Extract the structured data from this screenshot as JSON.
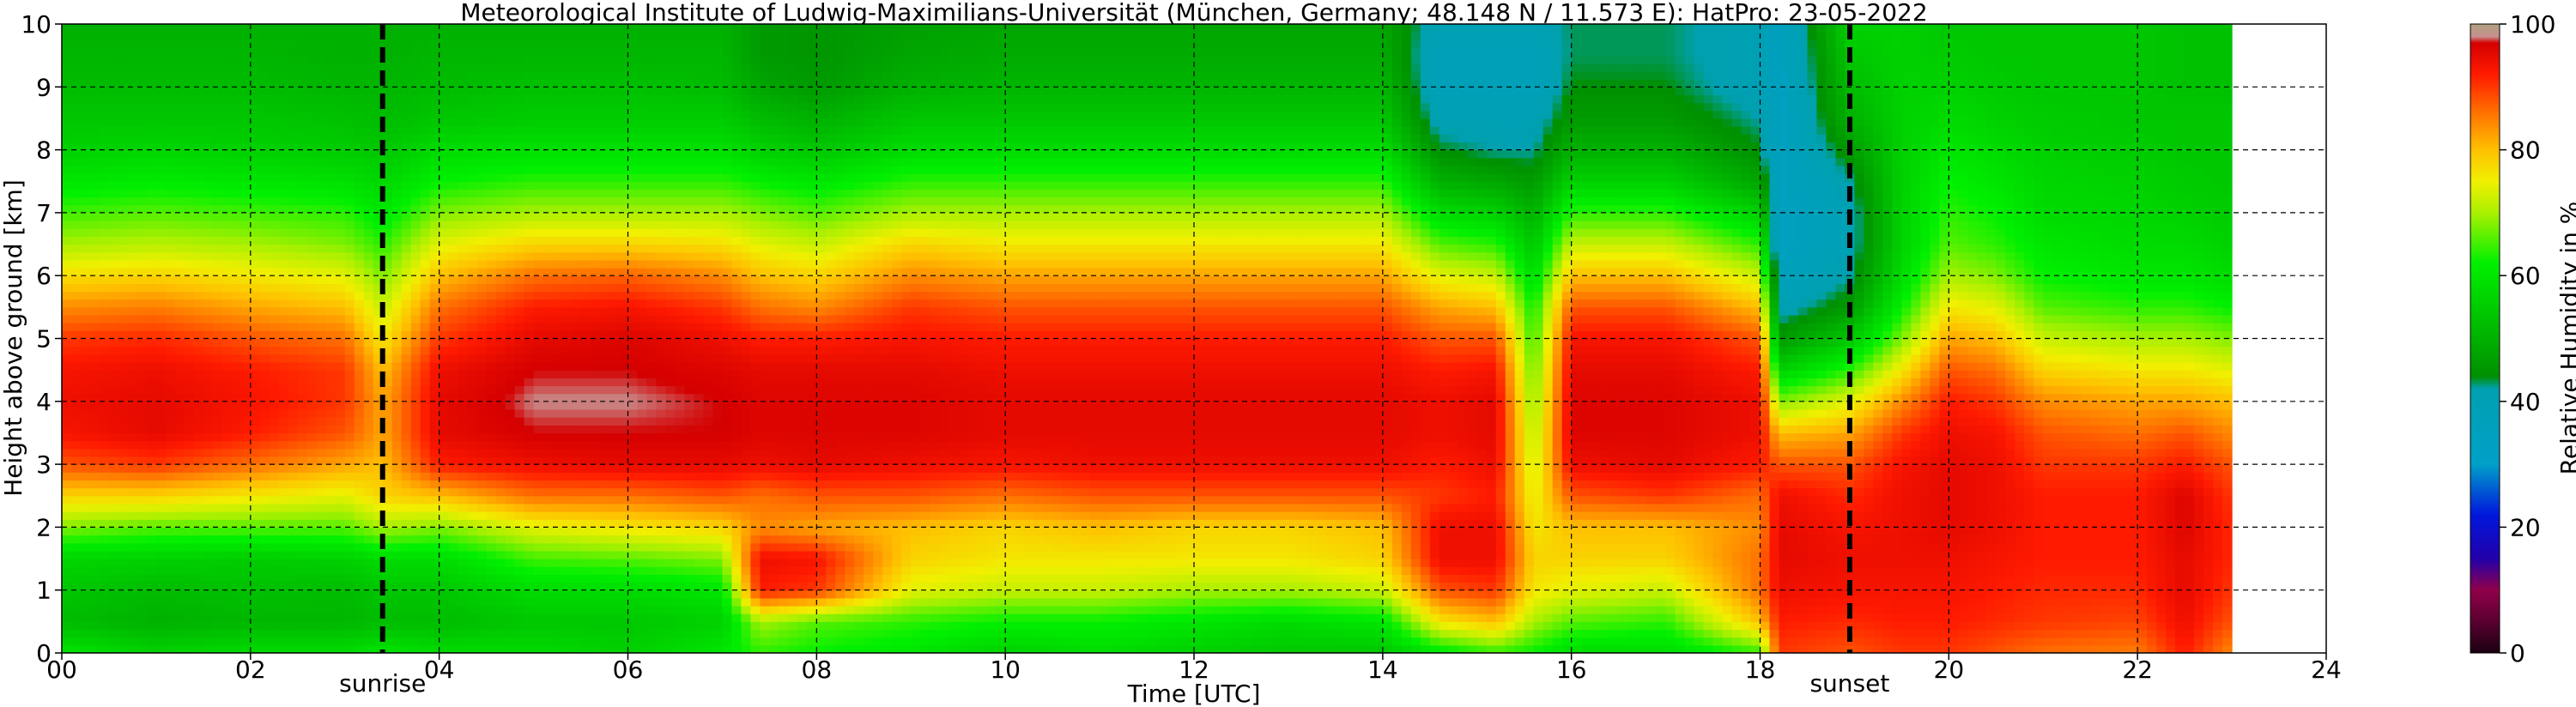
{
  "chart_data": {
    "type": "heatmap",
    "title": "Meteorological Institute of Ludwig-Maximilians-Universität (München, Germany; 48.148 N / 11.573 E):    HatPro: 23-05-2022",
    "xlabel": "Time [UTC]",
    "ylabel": "Height above ground [km]",
    "xlim": [
      0,
      24
    ],
    "ylim": [
      0,
      10
    ],
    "data_end_hour": 23,
    "x_ticks": [
      "00",
      "02",
      "04",
      "06",
      "08",
      "10",
      "12",
      "14",
      "16",
      "18",
      "20",
      "22",
      "24"
    ],
    "y_ticks": [
      "0",
      "1",
      "2",
      "3",
      "4",
      "5",
      "6",
      "7",
      "8",
      "9",
      "10"
    ],
    "grid": true,
    "vlines": [
      {
        "label": "sunrise",
        "hour": 3.4
      },
      {
        "label": "sunset",
        "hour": 18.95
      }
    ],
    "colorbar": {
      "label": "Relative Humidity in %",
      "range": [
        0,
        100
      ],
      "ticks": [
        "0",
        "20",
        "40",
        "60",
        "80",
        "100"
      ],
      "stops": [
        {
          "v": 0,
          "c": "#1a0010"
        },
        {
          "v": 5,
          "c": "#5a0030"
        },
        {
          "v": 10,
          "c": "#90004a"
        },
        {
          "v": 15,
          "c": "#2200aa"
        },
        {
          "v": 22,
          "c": "#0018dd"
        },
        {
          "v": 30,
          "c": "#00a0c8"
        },
        {
          "v": 42,
          "c": "#00a0b0"
        },
        {
          "v": 44,
          "c": "#009000"
        },
        {
          "v": 55,
          "c": "#00cc00"
        },
        {
          "v": 62,
          "c": "#00f000"
        },
        {
          "v": 70,
          "c": "#aaf000"
        },
        {
          "v": 75,
          "c": "#f0f000"
        },
        {
          "v": 80,
          "c": "#ffc000"
        },
        {
          "v": 86,
          "c": "#ff7000"
        },
        {
          "v": 92,
          "c": "#ff1a00"
        },
        {
          "v": 97,
          "c": "#d40000"
        },
        {
          "v": 98,
          "c": "#c89090"
        },
        {
          "v": 100,
          "c": "#b0a080"
        }
      ]
    },
    "rh_profiles": {
      "heights_km": [
        0,
        0.5,
        1,
        1.5,
        2,
        2.5,
        3,
        3.5,
        4,
        4.5,
        5,
        5.5,
        6,
        6.5,
        7,
        7.5,
        8,
        8.5,
        9,
        9.5,
        10
      ],
      "columns": [
        {
          "hour": 0.0,
          "rh": [
            60,
            52,
            54,
            57,
            68,
            78,
            88,
            93,
            94,
            93,
            90,
            84,
            77,
            70,
            65,
            60,
            56,
            54,
            52,
            51,
            50
          ]
        },
        {
          "hour": 1.0,
          "rh": [
            56,
            50,
            52,
            56,
            66,
            78,
            90,
            95,
            95,
            94,
            91,
            85,
            78,
            71,
            66,
            61,
            57,
            54,
            52,
            51,
            50
          ]
        },
        {
          "hour": 2.0,
          "rh": [
            58,
            51,
            53,
            55,
            66,
            76,
            86,
            92,
            93,
            92,
            88,
            82,
            76,
            70,
            65,
            60,
            56,
            54,
            52,
            51,
            50
          ]
        },
        {
          "hour": 3.0,
          "rh": [
            58,
            51,
            52,
            56,
            66,
            74,
            82,
            88,
            90,
            90,
            86,
            80,
            74,
            68,
            64,
            59,
            55,
            53,
            51,
            50,
            50
          ]
        },
        {
          "hour": 3.4,
          "rh": [
            60,
            52,
            54,
            58,
            70,
            78,
            80,
            82,
            82,
            80,
            76,
            72,
            68,
            64,
            60,
            57,
            54,
            52,
            51,
            50,
            50
          ]
        },
        {
          "hour": 4.0,
          "rh": [
            58,
            52,
            54,
            58,
            68,
            80,
            92,
            95,
            95,
            94,
            90,
            86,
            80,
            74,
            68,
            62,
            58,
            54,
            52,
            51,
            50
          ]
        },
        {
          "hour": 5.0,
          "rh": [
            58,
            54,
            58,
            65,
            74,
            86,
            94,
            97,
            98,
            97,
            95,
            92,
            86,
            78,
            70,
            64,
            59,
            55,
            53,
            51,
            50
          ]
        },
        {
          "hour": 6.0,
          "rh": [
            56,
            54,
            58,
            66,
            76,
            86,
            95,
            97,
            98,
            97,
            96,
            93,
            87,
            78,
            70,
            64,
            59,
            55,
            53,
            51,
            50
          ]
        },
        {
          "hour": 7.0,
          "rh": [
            60,
            56,
            60,
            68,
            78,
            88,
            95,
            97,
            97,
            96,
            94,
            90,
            84,
            77,
            70,
            64,
            59,
            55,
            52,
            51,
            50
          ]
        },
        {
          "hour": 7.4,
          "rh": [
            64,
            70,
            92,
            94,
            84,
            86,
            94,
            96,
            96,
            95,
            92,
            86,
            80,
            74,
            68,
            62,
            56,
            52,
            48,
            46,
            46
          ]
        },
        {
          "hour": 8.0,
          "rh": [
            62,
            66,
            90,
            93,
            82,
            88,
            95,
            96,
            96,
            95,
            92,
            84,
            78,
            72,
            66,
            60,
            54,
            50,
            46,
            45,
            45
          ]
        },
        {
          "hour": 9.0,
          "rh": [
            60,
            64,
            74,
            78,
            80,
            88,
            94,
            96,
            96,
            95,
            93,
            90,
            84,
            78,
            70,
            64,
            58,
            54,
            50,
            48,
            47
          ]
        },
        {
          "hour": 10.0,
          "rh": [
            56,
            62,
            72,
            76,
            78,
            86,
            93,
            95,
            95,
            94,
            92,
            88,
            82,
            76,
            70,
            64,
            58,
            54,
            51,
            49,
            48
          ]
        },
        {
          "hour": 11.0,
          "rh": [
            58,
            62,
            72,
            76,
            80,
            88,
            94,
            95,
            95,
            94,
            92,
            88,
            82,
            76,
            70,
            64,
            58,
            54,
            51,
            49,
            48
          ]
        },
        {
          "hour": 12.0,
          "rh": [
            56,
            60,
            70,
            76,
            78,
            88,
            94,
            95,
            95,
            94,
            92,
            88,
            82,
            76,
            70,
            64,
            58,
            54,
            51,
            49,
            48
          ]
        },
        {
          "hour": 13.0,
          "rh": [
            54,
            58,
            70,
            76,
            78,
            88,
            94,
            95,
            95,
            94,
            92,
            88,
            82,
            76,
            70,
            64,
            58,
            54,
            51,
            49,
            48
          ]
        },
        {
          "hour": 14.0,
          "rh": [
            54,
            60,
            72,
            78,
            80,
            88,
            94,
            95,
            95,
            94,
            92,
            88,
            82,
            76,
            70,
            64,
            58,
            54,
            51,
            49,
            48
          ]
        },
        {
          "hour": 14.6,
          "rh": [
            60,
            76,
            88,
            94,
            94,
            90,
            92,
            94,
            94,
            92,
            88,
            82,
            74,
            66,
            58,
            50,
            44,
            40,
            38,
            38,
            40
          ]
        },
        {
          "hour": 15.2,
          "rh": [
            64,
            80,
            90,
            94,
            94,
            92,
            94,
            95,
            95,
            93,
            88,
            80,
            72,
            64,
            56,
            48,
            42,
            40,
            38,
            38,
            40
          ]
        },
        {
          "hour": 15.6,
          "rh": [
            62,
            70,
            76,
            78,
            76,
            74,
            72,
            70,
            68,
            66,
            64,
            62,
            58,
            54,
            50,
            46,
            42,
            40,
            38,
            38,
            40
          ]
        },
        {
          "hour": 16.0,
          "rh": [
            58,
            66,
            74,
            78,
            80,
            88,
            94,
            96,
            96,
            95,
            93,
            88,
            80,
            72,
            64,
            56,
            50,
            46,
            44,
            43,
            43
          ]
        },
        {
          "hour": 17.0,
          "rh": [
            58,
            64,
            72,
            78,
            80,
            90,
            95,
            96,
            96,
            95,
            93,
            88,
            80,
            72,
            64,
            56,
            50,
            46,
            44,
            43,
            43
          ]
        },
        {
          "hour": 18.0,
          "rh": [
            64,
            80,
            86,
            86,
            84,
            86,
            92,
            94,
            94,
            92,
            88,
            80,
            72,
            64,
            56,
            48,
            44,
            42,
            40,
            40,
            40
          ]
        },
        {
          "hour": 18.2,
          "rh": [
            90,
            92,
            94,
            95,
            95,
            94,
            88,
            80,
            68,
            56,
            46,
            40,
            36,
            34,
            34,
            34,
            34,
            34,
            34,
            34,
            34
          ]
        },
        {
          "hour": 18.95,
          "rh": [
            88,
            91,
            93,
            94,
            93,
            91,
            88,
            82,
            74,
            64,
            54,
            46,
            42,
            40,
            40,
            42,
            46,
            50,
            52,
            54,
            56
          ]
        },
        {
          "hour": 19.5,
          "rh": [
            90,
            92,
            93,
            94,
            94,
            94,
            93,
            90,
            84,
            76,
            68,
            62,
            58,
            56,
            56,
            56,
            56,
            56,
            56,
            56,
            56
          ]
        },
        {
          "hour": 20.0,
          "rh": [
            90,
            92,
            93,
            94,
            95,
            95,
            95,
            94,
            92,
            88,
            82,
            76,
            70,
            66,
            64,
            62,
            60,
            58,
            56,
            55,
            54
          ]
        },
        {
          "hour": 20.5,
          "rh": [
            88,
            91,
            92,
            93,
            94,
            94,
            94,
            93,
            90,
            86,
            80,
            74,
            68,
            64,
            62,
            60,
            58,
            56,
            55,
            54,
            54
          ]
        },
        {
          "hour": 21.0,
          "rh": [
            86,
            90,
            91,
            92,
            92,
            92,
            90,
            88,
            84,
            78,
            72,
            66,
            62,
            60,
            58,
            57,
            56,
            55,
            54,
            54,
            54
          ]
        },
        {
          "hour": 22.0,
          "rh": [
            85,
            89,
            91,
            92,
            92,
            92,
            90,
            86,
            82,
            76,
            70,
            64,
            60,
            58,
            57,
            56,
            55,
            54,
            54,
            54,
            54
          ]
        },
        {
          "hour": 22.5,
          "rh": [
            92,
            94,
            95,
            95,
            96,
            96,
            92,
            88,
            82,
            76,
            70,
            64,
            60,
            58,
            56,
            55,
            54,
            54,
            53,
            53,
            53
          ]
        },
        {
          "hour": 23.0,
          "rh": [
            84,
            88,
            90,
            91,
            91,
            90,
            88,
            84,
            80,
            74,
            68,
            62,
            58,
            56,
            55,
            54,
            54,
            54,
            53,
            53,
            53
          ]
        }
      ]
    }
  }
}
